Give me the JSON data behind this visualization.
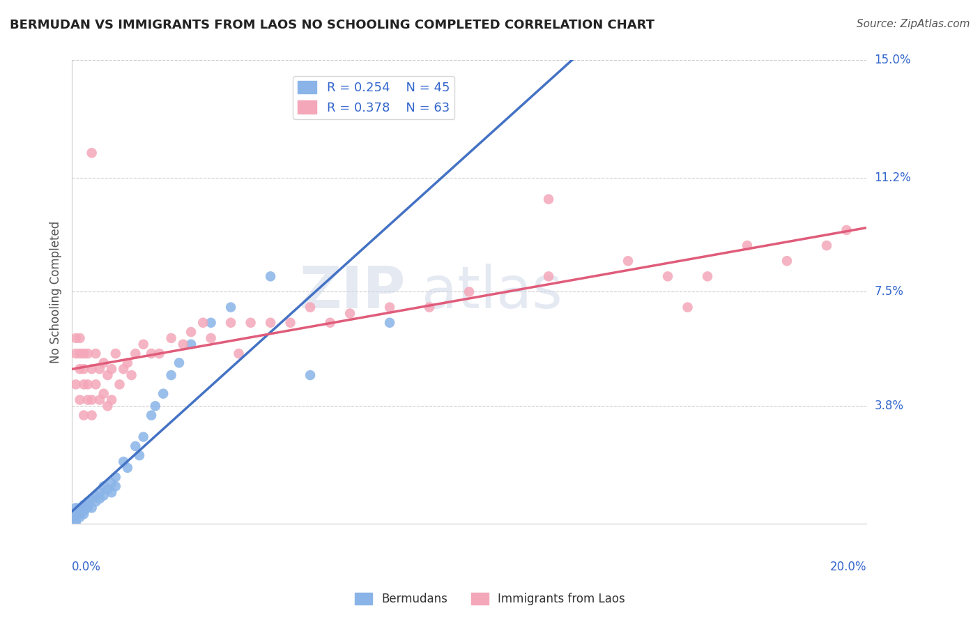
{
  "title": "BERMUDAN VS IMMIGRANTS FROM LAOS NO SCHOOLING COMPLETED CORRELATION CHART",
  "source": "Source: ZipAtlas.com",
  "ylabel": "No Schooling Completed",
  "xlim": [
    0.0,
    0.2
  ],
  "ylim": [
    0.0,
    0.15
  ],
  "xtick_labels": [
    "0.0%",
    "20.0%"
  ],
  "ytick_labels": [
    "3.8%",
    "7.5%",
    "11.2%",
    "15.0%"
  ],
  "ytick_values": [
    0.038,
    0.075,
    0.112,
    0.15
  ],
  "legend_r1": "R = 0.254",
  "legend_n1": "N = 45",
  "legend_r2": "R = 0.378",
  "legend_n2": "N = 63",
  "blue_color": "#8ab4e8",
  "pink_color": "#f4a7b9",
  "line_blue": "#4472c4",
  "line_pink": "#e05c7a",
  "dash_color": "#aaaaaa",
  "background_color": "#ffffff",
  "blue_x": [
    0.001,
    0.001,
    0.001,
    0.001,
    0.001,
    0.002,
    0.002,
    0.002,
    0.002,
    0.003,
    0.003,
    0.003,
    0.003,
    0.004,
    0.004,
    0.004,
    0.005,
    0.005,
    0.006,
    0.006,
    0.007,
    0.007,
    0.008,
    0.008,
    0.009,
    0.01,
    0.01,
    0.011,
    0.011,
    0.013,
    0.014,
    0.016,
    0.017,
    0.018,
    0.02,
    0.021,
    0.023,
    0.025,
    0.027,
    0.03,
    0.035,
    0.04,
    0.05,
    0.06,
    0.08
  ],
  "blue_y": [
    0.005,
    0.003,
    0.002,
    0.001,
    0.0,
    0.005,
    0.004,
    0.003,
    0.002,
    0.006,
    0.005,
    0.004,
    0.003,
    0.007,
    0.006,
    0.005,
    0.008,
    0.005,
    0.009,
    0.007,
    0.01,
    0.008,
    0.012,
    0.009,
    0.011,
    0.013,
    0.01,
    0.015,
    0.012,
    0.02,
    0.018,
    0.025,
    0.022,
    0.028,
    0.035,
    0.038,
    0.042,
    0.048,
    0.052,
    0.058,
    0.065,
    0.07,
    0.08,
    0.048,
    0.065
  ],
  "pink_x": [
    0.001,
    0.001,
    0.001,
    0.002,
    0.002,
    0.002,
    0.002,
    0.003,
    0.003,
    0.003,
    0.003,
    0.004,
    0.004,
    0.004,
    0.005,
    0.005,
    0.005,
    0.006,
    0.006,
    0.007,
    0.007,
    0.008,
    0.008,
    0.009,
    0.009,
    0.01,
    0.01,
    0.011,
    0.012,
    0.013,
    0.014,
    0.015,
    0.016,
    0.018,
    0.02,
    0.022,
    0.025,
    0.028,
    0.03,
    0.033,
    0.035,
    0.04,
    0.045,
    0.05,
    0.055,
    0.06,
    0.07,
    0.08,
    0.09,
    0.1,
    0.12,
    0.14,
    0.15,
    0.16,
    0.17,
    0.18,
    0.19,
    0.195,
    0.005,
    0.042,
    0.065,
    0.12,
    0.155
  ],
  "pink_y": [
    0.045,
    0.055,
    0.06,
    0.04,
    0.05,
    0.055,
    0.06,
    0.035,
    0.045,
    0.05,
    0.055,
    0.04,
    0.045,
    0.055,
    0.035,
    0.04,
    0.05,
    0.045,
    0.055,
    0.04,
    0.05,
    0.042,
    0.052,
    0.038,
    0.048,
    0.04,
    0.05,
    0.055,
    0.045,
    0.05,
    0.052,
    0.048,
    0.055,
    0.058,
    0.055,
    0.055,
    0.06,
    0.058,
    0.062,
    0.065,
    0.06,
    0.065,
    0.065,
    0.065,
    0.065,
    0.07,
    0.068,
    0.07,
    0.07,
    0.075,
    0.08,
    0.085,
    0.08,
    0.08,
    0.09,
    0.085,
    0.09,
    0.095,
    0.12,
    0.055,
    0.065,
    0.105,
    0.07
  ],
  "bottom_label1": "Bermudans",
  "bottom_label2": "Immigrants from Laos"
}
